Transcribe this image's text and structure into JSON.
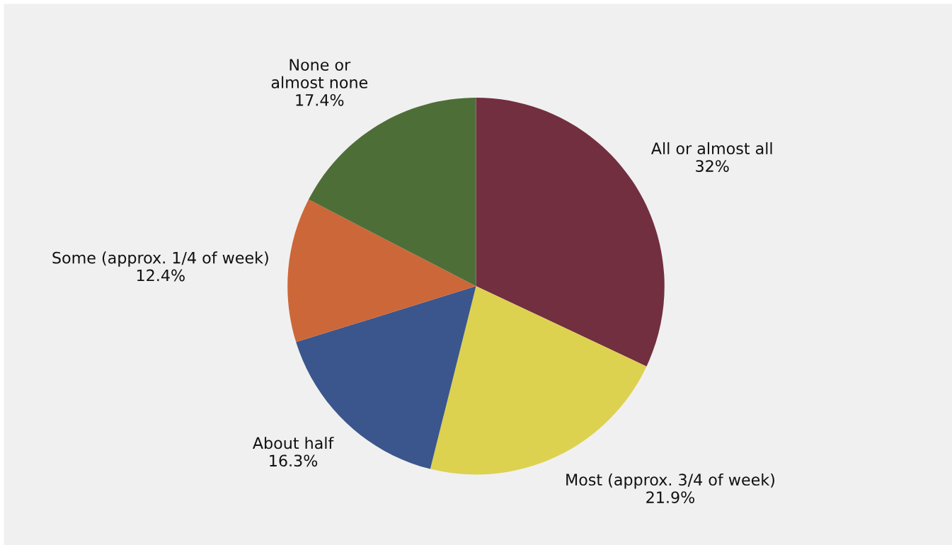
{
  "chart_data": {
    "type": "pie",
    "categories": [
      "All or almost all",
      "Most (approx. 3/4 of week)",
      "About half",
      "Some (approx. 1/4 of week)",
      "None or\nalmost none"
    ],
    "values": [
      32,
      21.9,
      16.3,
      12.4,
      17.4
    ],
    "value_labels": [
      "32%",
      "21.9%",
      "16.3%",
      "12.4%",
      "17.4%"
    ],
    "colors": [
      "#722f40",
      "#ddd150",
      "#3b568c",
      "#cc6739",
      "#4e6e37"
    ]
  }
}
